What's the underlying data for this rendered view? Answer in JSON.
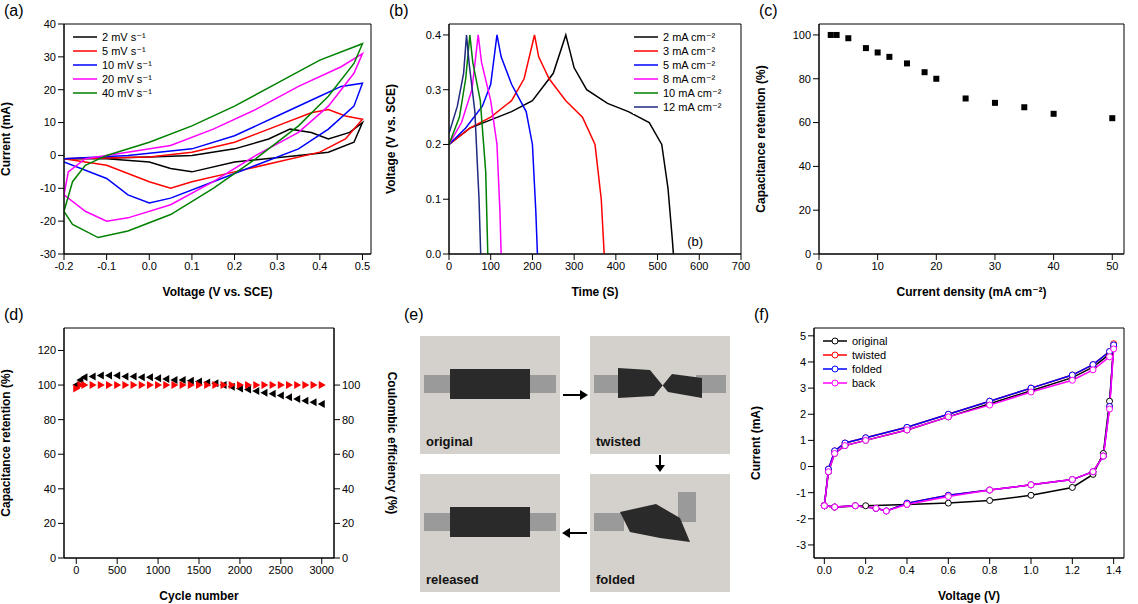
{
  "chart_data": [
    {
      "type": "line",
      "panel": "(a)",
      "xlabel": "Voltage (V vs. SCE)",
      "ylabel": "Current (mA)",
      "xlim": [
        -0.2,
        0.52
      ],
      "xticks": [
        -0.2,
        -0.1,
        {
          "value": 0,
          "label": "0.0"
        },
        0.1,
        0.2,
        0.3,
        0.4,
        0.5
      ],
      "ylim": [
        -30,
        40
      ],
      "yticks": [
        -30,
        -20,
        -10,
        0,
        10,
        20,
        30,
        40
      ],
      "legend": "upper left",
      "series": [
        {
          "name": "2 mV s⁻¹",
          "color": "#000000",
          "x": [
            -0.2,
            -0.1,
            0,
            0.1,
            0.2,
            0.28,
            0.33,
            0.38,
            0.42,
            0.47,
            0.5,
            0.48,
            0.42,
            0.35,
            0.2,
            0.1,
            0.05,
            0,
            -0.1,
            -0.2
          ],
          "values": [
            -1,
            -0.8,
            -0.5,
            0,
            2,
            5,
            8,
            7,
            5,
            7,
            10,
            4,
            1,
            0,
            -2,
            -5,
            -4,
            -2,
            -1,
            -1
          ]
        },
        {
          "name": "5 mV s⁻¹",
          "color": "#ff0000",
          "x": [
            -0.2,
            -0.1,
            0,
            0.1,
            0.2,
            0.3,
            0.38,
            0.42,
            0.46,
            0.5,
            0.46,
            0.4,
            0.3,
            0.2,
            0.1,
            0.05,
            0,
            -0.1,
            -0.2
          ],
          "values": [
            -1,
            -0.8,
            -0.5,
            1,
            4,
            9,
            13,
            14,
            12,
            11,
            5,
            1,
            -2,
            -5,
            -8,
            -10,
            -8,
            -3,
            -1
          ]
        },
        {
          "name": "10 mV s⁻¹",
          "color": "#0000ff",
          "x": [
            -0.2,
            -0.05,
            0.1,
            0.2,
            0.3,
            0.4,
            0.45,
            0.5,
            0.48,
            0.42,
            0.35,
            0.25,
            0.15,
            0.05,
            0,
            -0.05,
            -0.1,
            -0.2
          ],
          "values": [
            -1,
            0,
            2,
            6,
            12,
            18,
            21,
            22,
            15,
            8,
            2,
            -3,
            -8,
            -13,
            -14.5,
            -12,
            -7,
            -2
          ]
        },
        {
          "name": "20 mV s⁻¹",
          "color": "#ff00ff",
          "x": [
            -0.2,
            -0.19,
            -0.15,
            -0.1,
            0.05,
            0.15,
            0.25,
            0.35,
            0.45,
            0.5,
            0.48,
            0.42,
            0.35,
            0.25,
            0.15,
            0.05,
            -0.05,
            -0.1,
            -0.15,
            -0.2
          ],
          "values": [
            -12,
            -5,
            -1,
            0,
            3,
            8,
            14,
            21,
            27,
            31,
            25,
            15,
            7,
            0,
            -8,
            -15,
            -19,
            -20,
            -17,
            -12
          ]
        },
        {
          "name": "40 mV s⁻¹",
          "color": "#008000",
          "x": [
            -0.2,
            -0.18,
            -0.15,
            -0.1,
            0,
            0.1,
            0.2,
            0.3,
            0.4,
            0.5,
            0.48,
            0.42,
            0.35,
            0.25,
            0.15,
            0.05,
            -0.05,
            -0.12,
            -0.18,
            -0.2
          ],
          "values": [
            -17,
            -8,
            -3,
            0,
            4,
            9,
            15,
            22,
            29,
            34,
            28,
            18,
            9,
            -1,
            -10,
            -18,
            -23,
            -25,
            -21,
            -17
          ]
        }
      ]
    },
    {
      "type": "line",
      "panel": "(b)",
      "xlabel": "Time (S)",
      "ylabel": "Voltage (V vs. SCE)",
      "xlim": [
        0,
        700
      ],
      "xticks": [
        0,
        100,
        200,
        300,
        400,
        500,
        600,
        700
      ],
      "ylim": [
        0,
        0.42
      ],
      "yticks": [
        {
          "value": 0,
          "label": "0.0"
        },
        0.1,
        0.2,
        0.3,
        0.4
      ],
      "legend": "upper right",
      "annotations": [
        {
          "text": "(b)",
          "x": 590,
          "y": 0.02
        }
      ],
      "series": [
        {
          "name": "2 mA cm⁻²",
          "color": "#000000",
          "x": [
            0,
            50,
            100,
            150,
            200,
            250,
            280,
            290,
            300,
            330,
            380,
            430,
            480,
            510,
            525,
            535,
            538
          ],
          "values": [
            0.2,
            0.23,
            0.245,
            0.26,
            0.28,
            0.33,
            0.4,
            0.37,
            0.34,
            0.3,
            0.275,
            0.26,
            0.24,
            0.2,
            0.12,
            0.03,
            0
          ]
        },
        {
          "name": "3 mA cm⁻²",
          "color": "#ff0000",
          "x": [
            0,
            50,
            100,
            150,
            180,
            205,
            215,
            240,
            280,
            320,
            350,
            365,
            372
          ],
          "values": [
            0.2,
            0.23,
            0.25,
            0.28,
            0.32,
            0.4,
            0.36,
            0.32,
            0.28,
            0.25,
            0.2,
            0.1,
            0
          ]
        },
        {
          "name": "5 mA cm⁻²",
          "color": "#0000ff",
          "x": [
            0,
            40,
            80,
            100,
            115,
            125,
            150,
            185,
            200,
            208,
            212
          ],
          "values": [
            0.2,
            0.23,
            0.27,
            0.31,
            0.4,
            0.36,
            0.31,
            0.26,
            0.2,
            0.08,
            0
          ]
        },
        {
          "name": "8 mA cm⁻²",
          "color": "#ff00ff",
          "x": [
            0,
            30,
            55,
            70,
            78,
            100,
            115,
            122,
            125
          ],
          "values": [
            0.2,
            0.24,
            0.3,
            0.4,
            0.35,
            0.28,
            0.2,
            0.08,
            0
          ]
        },
        {
          "name": "10 mA cm⁻²",
          "color": "#008000",
          "x": [
            0,
            25,
            40,
            50,
            57,
            75,
            88,
            93
          ],
          "values": [
            0.2,
            0.25,
            0.32,
            0.4,
            0.35,
            0.28,
            0.15,
            0
          ]
        },
        {
          "name": "12 mA cm⁻²",
          "color": "#1f2a80",
          "x": [
            0,
            20,
            35,
            42,
            48,
            62,
            72,
            76
          ],
          "values": [
            0.22,
            0.27,
            0.33,
            0.4,
            0.35,
            0.26,
            0.1,
            0
          ]
        }
      ]
    },
    {
      "type": "scatter",
      "panel": "(c)",
      "xlabel": "Current density (mA cm⁻²)",
      "ylabel": "Capacitance retention (%)",
      "xlim": [
        0,
        52
      ],
      "xticks": [
        0,
        10,
        20,
        30,
        40,
        50
      ],
      "ylim": [
        0,
        105
      ],
      "yticks": [
        0,
        20,
        40,
        60,
        80,
        100
      ],
      "series": [
        {
          "color": "#000000",
          "marker": "square",
          "x": [
            2,
            3,
            5,
            8,
            10,
            12,
            15,
            18,
            20,
            25,
            30,
            35,
            40,
            50
          ],
          "values": [
            100,
            100,
            98.5,
            94,
            92,
            90,
            87,
            83,
            80,
            71,
            69,
            67,
            64,
            62
          ]
        }
      ]
    },
    {
      "type": "scatter",
      "panel": "(d)",
      "xlabel": "Cycle number",
      "ylabel": "Capacitance retention (%)",
      "y2label": "Coulombic efficiency (%)",
      "xlim": [
        -150,
        3150
      ],
      "xticks": [
        0,
        500,
        1000,
        1500,
        2000,
        2500,
        3000
      ],
      "ylim": [
        0,
        133
      ],
      "yticks": [
        0,
        20,
        40,
        60,
        80,
        100,
        120
      ],
      "y2lim": [
        0,
        133
      ],
      "y2ticks": [
        0,
        20,
        40,
        60,
        80,
        100
      ],
      "series": [
        {
          "color": "#000000",
          "marker": "triangle-left",
          "x": [
            0,
            50,
            100,
            200,
            300,
            400,
            500,
            600,
            700,
            800,
            900,
            1000,
            1100,
            1200,
            1300,
            1400,
            1500,
            1600,
            1700,
            1800,
            1900,
            2000,
            2100,
            2200,
            2300,
            2400,
            2500,
            2600,
            2700,
            2800,
            2900,
            3000
          ],
          "values": [
            100,
            103,
            104.5,
            105,
            105.5,
            105.5,
            105.5,
            105,
            105,
            104.5,
            104.5,
            104,
            103.5,
            103,
            103,
            102.5,
            102,
            101.5,
            101,
            100,
            99,
            98,
            97.5,
            96.5,
            95.5,
            95,
            94,
            93,
            92,
            91,
            90,
            89
          ]
        },
        {
          "color": "#ff0000",
          "marker": "triangle-right",
          "axis": "y2",
          "x": [
            0,
            50,
            100,
            200,
            300,
            400,
            500,
            600,
            700,
            800,
            900,
            1000,
            1100,
            1200,
            1300,
            1400,
            1500,
            1600,
            1700,
            1800,
            1900,
            2000,
            2100,
            2200,
            2300,
            2400,
            2500,
            2600,
            2700,
            2800,
            2900,
            3000
          ],
          "values": [
            98,
            100,
            100,
            100,
            100,
            100,
            100,
            100,
            100,
            100,
            100,
            100,
            100,
            100,
            100,
            100,
            100,
            100,
            100,
            100,
            100,
            100,
            100,
            100,
            100,
            100,
            100,
            100,
            100,
            100,
            100,
            100
          ]
        }
      ]
    },
    {
      "type": "line",
      "panel": "(f)",
      "xlabel": "Voltage (V)",
      "ylabel": "Current (mA)",
      "xlim": [
        -0.05,
        1.45
      ],
      "xticks": [
        {
          "value": 0,
          "label": "0.0"
        },
        0.2,
        0.4,
        0.6,
        0.8,
        {
          "value": 1,
          "label": "1.0"
        },
        1.2,
        1.4
      ],
      "ylim": [
        -3.5,
        5.3
      ],
      "yticks": [
        -3,
        -2,
        -1,
        0,
        1,
        2,
        3,
        4,
        5
      ],
      "legend": "upper left",
      "series": [
        {
          "name": "original",
          "color": "#000000",
          "marker": "circle",
          "x": [
            0,
            0.02,
            0.05,
            0.1,
            0.2,
            0.4,
            0.6,
            0.8,
            1.0,
            1.2,
            1.3,
            1.38,
            1.4,
            1.38,
            1.35,
            1.3,
            1.2,
            1.0,
            0.8,
            0.6,
            0.4,
            0.2,
            0.05,
            0
          ],
          "values": [
            -1.5,
            -0.2,
            0.5,
            0.8,
            1.0,
            1.4,
            1.9,
            2.4,
            2.9,
            3.4,
            3.8,
            4.3,
            4.6,
            2.5,
            0.5,
            -0.3,
            -0.8,
            -1.1,
            -1.3,
            -1.4,
            -1.45,
            -1.5,
            -1.55,
            -1.5
          ]
        },
        {
          "name": "twisted",
          "color": "#ff0000",
          "marker": "circle",
          "x": [
            0,
            0.02,
            0.05,
            0.1,
            0.2,
            0.4,
            0.6,
            0.8,
            1.0,
            1.2,
            1.3,
            1.38,
            1.4,
            1.38,
            1.35,
            1.3,
            1.2,
            1.0,
            0.8,
            0.6,
            0.4,
            0.3,
            0.25,
            0.15,
            0.05,
            0
          ],
          "values": [
            -1.5,
            -0.1,
            0.6,
            0.9,
            1.1,
            1.5,
            2.0,
            2.5,
            3.0,
            3.5,
            3.9,
            4.4,
            4.7,
            2.3,
            0.4,
            -0.2,
            -0.5,
            -0.7,
            -0.9,
            -1.1,
            -1.4,
            -1.7,
            -1.6,
            -1.5,
            -1.55,
            -1.5
          ]
        },
        {
          "name": "folded",
          "color": "#0000ff",
          "marker": "circle",
          "x": [
            0,
            0.02,
            0.05,
            0.1,
            0.2,
            0.4,
            0.6,
            0.8,
            1.0,
            1.2,
            1.3,
            1.38,
            1.4,
            1.38,
            1.35,
            1.3,
            1.2,
            1.0,
            0.8,
            0.6,
            0.4,
            0.3,
            0.25,
            0.15,
            0.05,
            0
          ],
          "values": [
            -1.5,
            -0.1,
            0.6,
            0.9,
            1.1,
            1.5,
            2.0,
            2.5,
            3.0,
            3.5,
            3.9,
            4.4,
            4.65,
            2.3,
            0.4,
            -0.2,
            -0.5,
            -0.7,
            -0.9,
            -1.1,
            -1.4,
            -1.7,
            -1.6,
            -1.5,
            -1.55,
            -1.5
          ]
        },
        {
          "name": "back",
          "color": "#ff00ff",
          "marker": "circle",
          "x": [
            0,
            0.02,
            0.05,
            0.1,
            0.2,
            0.4,
            0.6,
            0.8,
            1.0,
            1.2,
            1.3,
            1.38,
            1.4,
            1.38,
            1.35,
            1.3,
            1.2,
            1.0,
            0.8,
            0.6,
            0.4,
            0.3,
            0.25,
            0.15,
            0.05,
            0
          ],
          "values": [
            -1.5,
            -0.2,
            0.5,
            0.8,
            1.0,
            1.4,
            1.9,
            2.35,
            2.85,
            3.3,
            3.7,
            4.2,
            4.5,
            2.2,
            0.4,
            -0.2,
            -0.5,
            -0.7,
            -0.9,
            -1.15,
            -1.45,
            -1.7,
            -1.6,
            -1.5,
            -1.55,
            -1.5
          ]
        }
      ]
    }
  ],
  "photos": {
    "panel": "(e)",
    "captions": [
      "original",
      "twisted",
      "folded",
      "released"
    ]
  }
}
